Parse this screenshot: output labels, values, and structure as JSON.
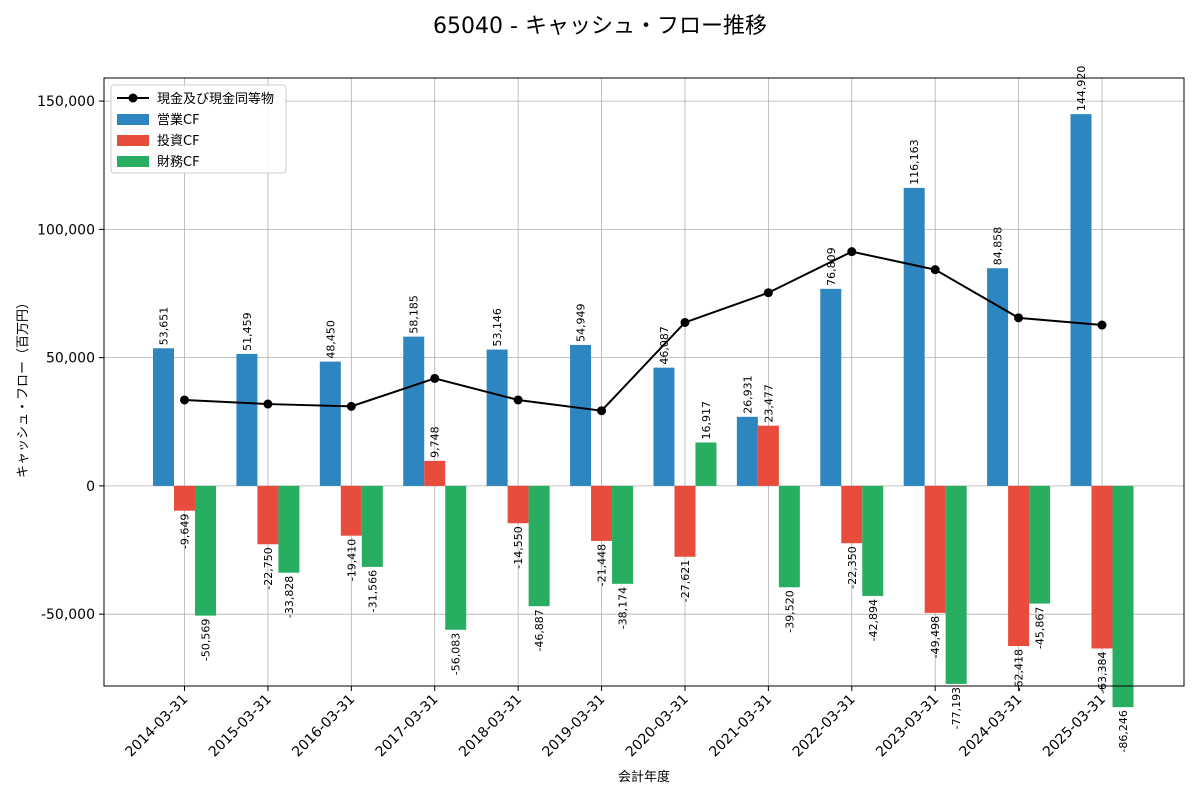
{
  "chart_data": {
    "type": "bar",
    "title": "65040 - キャッシュ・フロー推移",
    "xlabel": "会計年度",
    "ylabel": "キャッシュ・フロー（百万円）",
    "ylim": [
      -78000,
      159000
    ],
    "yticks": [
      -50000,
      0,
      50000,
      100000,
      150000
    ],
    "ytick_labels": [
      "-50,000",
      "0",
      "50,000",
      "100,000",
      "150,000"
    ],
    "grid": true,
    "legend_position": "top-left",
    "categories": [
      "2014-03-31",
      "2015-03-31",
      "2016-03-31",
      "2017-03-31",
      "2018-03-31",
      "2019-03-31",
      "2020-03-31",
      "2021-03-31",
      "2022-03-31",
      "2023-03-31",
      "2024-03-31",
      "2025-03-31"
    ],
    "series": [
      {
        "name": "営業CF",
        "kind": "bar",
        "color": "#2e86c1",
        "values": [
          53651,
          51459,
          48450,
          58185,
          53146,
          54949,
          46087,
          26931,
          76809,
          116163,
          84858,
          144920
        ],
        "labels": [
          "53,651",
          "51,459",
          "48,450",
          "58,185",
          "53,146",
          "54,949",
          "46,087",
          "26,931",
          "76,809",
          "116,163",
          "84,858",
          "144,920"
        ]
      },
      {
        "name": "投資CF",
        "kind": "bar",
        "color": "#e74c3c",
        "values": [
          -9649,
          -22750,
          -19410,
          9748,
          -14550,
          -21448,
          -27621,
          23477,
          -22350,
          -49498,
          -62418,
          -63384
        ],
        "labels": [
          "-9,649",
          "-22,750",
          "-19,410",
          "9,748",
          "-14,550",
          "-21,448",
          "-27,621",
          "23,477",
          "-22,350",
          "-49,498",
          "-62,418",
          "-63,384"
        ]
      },
      {
        "name": "財務CF",
        "kind": "bar",
        "color": "#27ae60",
        "values": [
          -50569,
          -33828,
          -31566,
          -56083,
          -46887,
          -38174,
          16917,
          -39520,
          -42894,
          -77193,
          -45867,
          -86246
        ],
        "labels": [
          "-50,569",
          "-33,828",
          "-31,566",
          "-56,083",
          "-46,887",
          "-38,174",
          "16,917",
          "-39,520",
          "-42,894",
          "-77,193",
          "-45,867",
          "-86,246"
        ]
      },
      {
        "name": "現金及び現金同等物",
        "kind": "line",
        "color": "#000000",
        "values": [
          33500,
          31900,
          31000,
          41900,
          33500,
          29300,
          63700,
          75300,
          91300,
          84300,
          65500,
          62700
        ]
      }
    ]
  }
}
